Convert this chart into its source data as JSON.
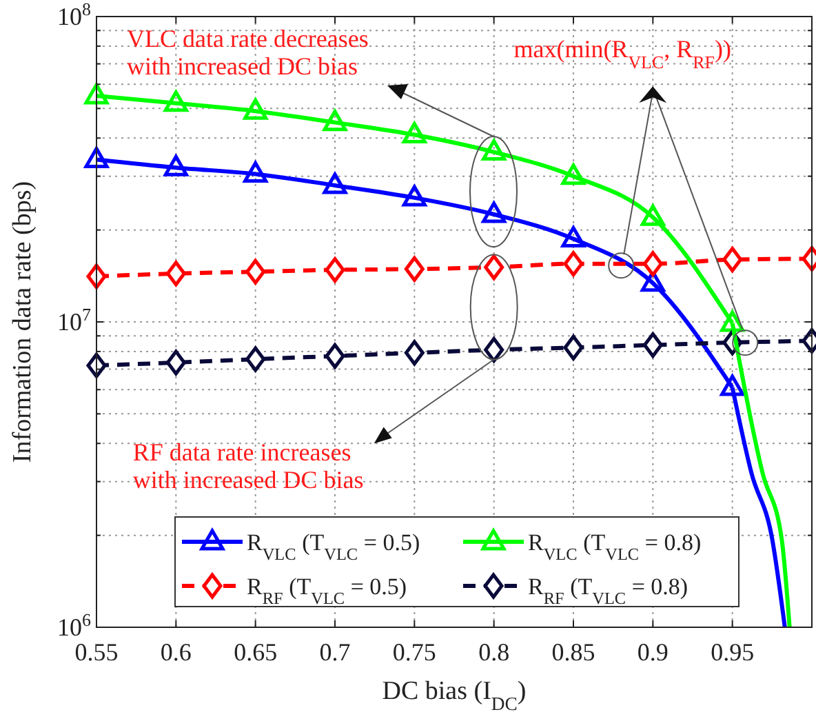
{
  "chart_data": {
    "type": "line",
    "xlabel": "DC bias (I$_{DC}$)",
    "ylabel": "Information data rate (bps)",
    "x": [
      0.55,
      0.6,
      0.65,
      0.7,
      0.75,
      0.8,
      0.85,
      0.9,
      0.95,
      1.0
    ],
    "xlim": [
      0.55,
      1.0
    ],
    "xticks": [
      0.55,
      0.6,
      0.65,
      0.7,
      0.75,
      0.8,
      0.85,
      0.9,
      0.95
    ],
    "ylim": [
      1000000,
      100000000
    ],
    "log": true,
    "yticks": [
      {
        "value": 1000000,
        "label": "10$^{6}$"
      },
      {
        "value": 2000000,
        "label": null
      },
      {
        "value": 3000000,
        "label": null
      },
      {
        "value": 4000000,
        "label": null
      },
      {
        "value": 5000000,
        "label": null
      },
      {
        "value": 6000000,
        "label": null
      },
      {
        "value": 7000000,
        "label": null
      },
      {
        "value": 8000000,
        "label": null
      },
      {
        "value": 9000000,
        "label": null
      },
      {
        "value": 10000000,
        "label": "10$^{7}$"
      },
      {
        "value": 20000000,
        "label": null
      },
      {
        "value": 30000000,
        "label": null
      },
      {
        "value": 40000000,
        "label": null
      },
      {
        "value": 50000000,
        "label": null
      },
      {
        "value": 60000000,
        "label": null
      },
      {
        "value": 70000000,
        "label": null
      },
      {
        "value": 80000000,
        "label": null
      },
      {
        "value": 90000000,
        "label": null
      },
      {
        "value": 100000000,
        "label": "10$^{8}$"
      }
    ],
    "grid": true,
    "legend": "bottom",
    "series": [
      {
        "name": "R$_{VLC}$ (T$_{VLC}$ = 0.5)",
        "color": "#0000ff",
        "marker": "triangle",
        "line_style": "solid",
        "x": [
          0.55,
          0.6,
          0.65,
          0.7,
          0.75,
          0.8,
          0.85,
          0.9,
          0.95
        ],
        "values": [
          34000000,
          32000000,
          30500000,
          28000000,
          25500000,
          22500000,
          18700000,
          13400000,
          6100000
        ]
      },
      {
        "name": "R$_{VLC}$ (T$_{VLC}$ = 0.8)",
        "color": "#00ff00",
        "marker": "triangle",
        "line_style": "solid",
        "x": [
          0.55,
          0.6,
          0.65,
          0.7,
          0.75,
          0.8,
          0.85,
          0.9,
          0.95
        ],
        "values": [
          55000000,
          52000000,
          49000000,
          45000000,
          41000000,
          36000000,
          30000000,
          22000000,
          9900000
        ]
      },
      {
        "name": "R$_{RF}$ (T$_{VLC}$ = 0.5)",
        "color": "#ff0000",
        "marker": "diamond",
        "line_style": "dashed",
        "values": [
          14100000,
          14400000,
          14600000,
          14800000,
          14900000,
          15100000,
          15500000,
          15500000,
          16000000,
          16100000
        ]
      },
      {
        "name": "R$_{RF}$ (T$_{VLC}$ = 0.8)",
        "color": "#0a0a3a",
        "marker": "diamond",
        "line_style": "dashed",
        "values": [
          7200000,
          7360000,
          7550000,
          7730000,
          7920000,
          8100000,
          8240000,
          8400000,
          8560000,
          8670000
        ]
      },
      {
        "color": "#0000ff",
        "marker": "none",
        "line_style": "solid",
        "x": [
          0.95,
          0.962,
          0.975,
          0.983
        ],
        "values": [
          6100000,
          3200000,
          1950000,
          1000000
        ]
      },
      {
        "color": "#00ff00",
        "marker": "none",
        "line_style": "solid",
        "x": [
          0.95,
          0.969,
          0.981,
          0.986
        ],
        "values": [
          9900000,
          3200000,
          1950000,
          1000000
        ]
      }
    ],
    "annotations": [
      "VLC data rate decreases\nwith increased DC bias",
      {
        "text": "RF data rate increases\nwith increased DC bias",
        "x": 0.8,
        "y": 8100000
      },
      {
        "text": "max(min(R$_{VLC}$, R$_{RF}$))",
        "x": 0.88,
        "y": 15300000
      }
    ]
  }
}
